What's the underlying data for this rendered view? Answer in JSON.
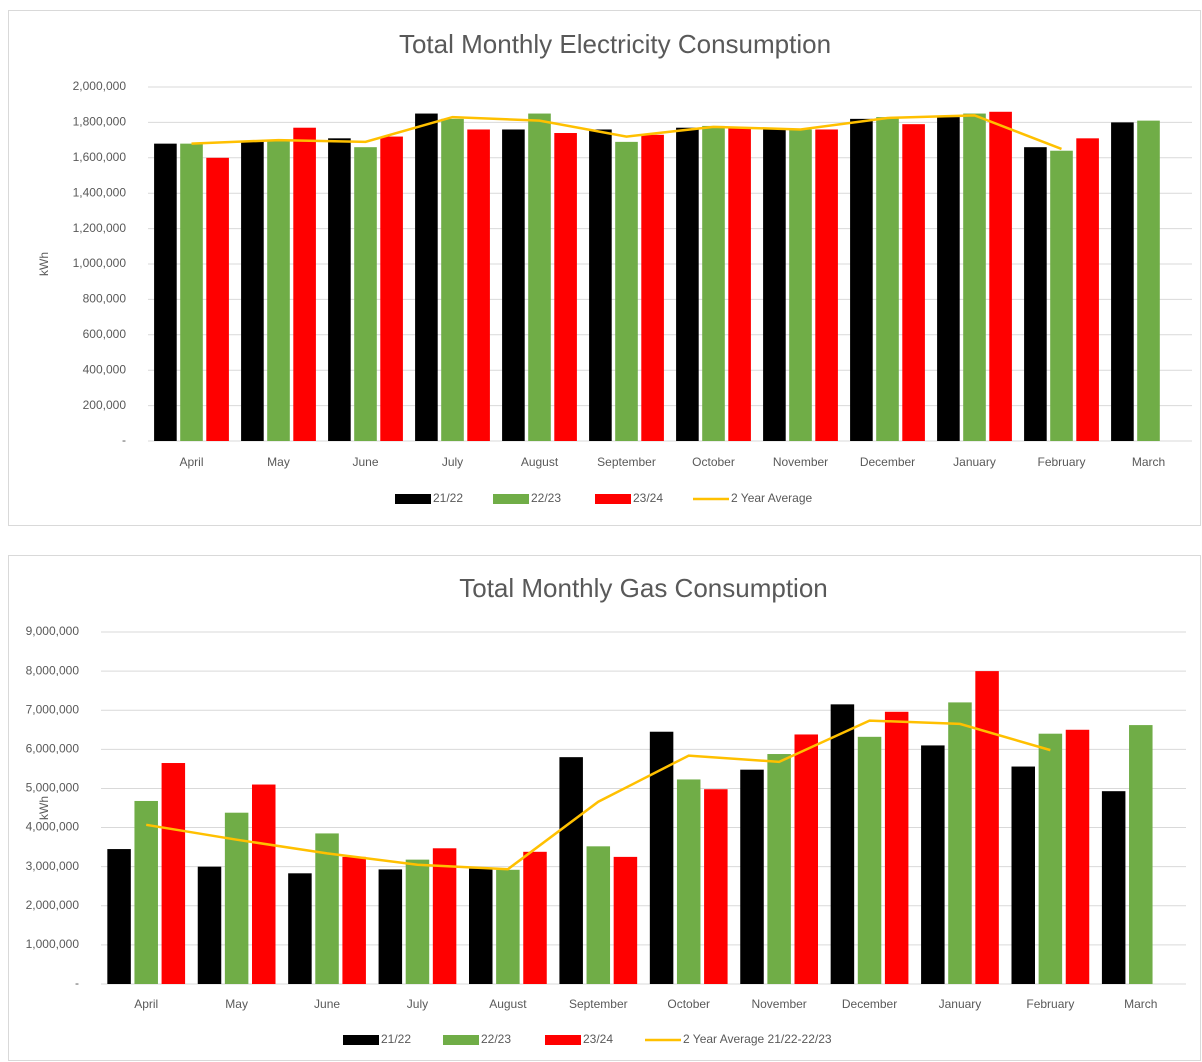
{
  "chart_data": [
    {
      "type": "bar",
      "title": "Total Monthly Electricity Consumption",
      "y_label": "kWh",
      "categories": [
        "April",
        "May",
        "June",
        "July",
        "August",
        "September",
        "October",
        "November",
        "December",
        "January",
        "February",
        "March"
      ],
      "series": [
        {
          "name": "21/22",
          "color": "#000000",
          "values": [
            1680000,
            1690000,
            1710000,
            1850000,
            1760000,
            1760000,
            1770000,
            1760000,
            1820000,
            1830000,
            1660000,
            1800000
          ]
        },
        {
          "name": "22/23",
          "color": "#70ad47",
          "values": [
            1680000,
            1700000,
            1660000,
            1820000,
            1850000,
            1690000,
            1780000,
            1760000,
            1830000,
            1850000,
            1640000,
            1810000
          ]
        },
        {
          "name": "23/24",
          "color": "#ff0000",
          "values": [
            1600000,
            1770000,
            1720000,
            1760000,
            1740000,
            1730000,
            1770000,
            1760000,
            1790000,
            1860000,
            1710000,
            null
          ]
        },
        {
          "name": "2 Year Average",
          "color": "#ffc000",
          "type": "line",
          "values": [
            1680000,
            1700000,
            1690000,
            1830000,
            1810000,
            1720000,
            1775000,
            1760000,
            1825000,
            1840000,
            1650000,
            null
          ]
        }
      ],
      "ylim": [
        0,
        2000000
      ],
      "yticks": [
        {
          "value": 0,
          "label": "-"
        },
        {
          "value": 200000,
          "label": "200,000"
        },
        {
          "value": 400000,
          "label": "400,000"
        },
        {
          "value": 600000,
          "label": "600,000"
        },
        {
          "value": 800000,
          "label": "800,000"
        },
        {
          "value": 1000000,
          "label": "1,000,000"
        },
        {
          "value": 1200000,
          "label": "1,200,000"
        },
        {
          "value": 1400000,
          "label": "1,400,000"
        },
        {
          "value": 1600000,
          "label": "1,600,000"
        },
        {
          "value": 1800000,
          "label": "1,800,000"
        },
        {
          "value": 2000000,
          "label": "2,000,000"
        }
      ],
      "grid": true,
      "legend": "bottom"
    },
    {
      "type": "bar",
      "title": "Total Monthly Gas Consumption",
      "y_label": "kWh",
      "categories": [
        "April",
        "May",
        "June",
        "July",
        "August",
        "September",
        "October",
        "November",
        "December",
        "January",
        "February",
        "March"
      ],
      "series": [
        {
          "name": "21/22",
          "color": "#000000",
          "values": [
            3450000,
            3000000,
            2830000,
            2930000,
            2950000,
            5800000,
            6450000,
            5480000,
            7150000,
            6100000,
            5560000,
            4930000
          ]
        },
        {
          "name": "22/23",
          "color": "#70ad47",
          "values": [
            4680000,
            4380000,
            3850000,
            3180000,
            2920000,
            3520000,
            5230000,
            5880000,
            6320000,
            7200000,
            6400000,
            6620000
          ]
        },
        {
          "name": "23/24",
          "color": "#ff0000",
          "values": [
            5650000,
            5100000,
            3250000,
            3470000,
            3380000,
            3250000,
            4980000,
            6380000,
            6960000,
            8000000,
            6500000,
            null
          ]
        },
        {
          "name": "2 Year Average 21/22-22/23",
          "color": "#ffc000",
          "type": "line",
          "values": [
            4070000,
            3690000,
            3340000,
            3050000,
            2935000,
            4660000,
            5840000,
            5680000,
            6735000,
            6650000,
            5980000,
            null
          ]
        }
      ],
      "ylim": [
        0,
        9000000
      ],
      "yticks": [
        {
          "value": 0,
          "label": "-"
        },
        {
          "value": 1000000,
          "label": "1,000,000"
        },
        {
          "value": 2000000,
          "label": "2,000,000"
        },
        {
          "value": 3000000,
          "label": "3,000,000"
        },
        {
          "value": 4000000,
          "label": "4,000,000"
        },
        {
          "value": 5000000,
          "label": "5,000,000"
        },
        {
          "value": 6000000,
          "label": "6,000,000"
        },
        {
          "value": 7000000,
          "label": "7,000,000"
        },
        {
          "value": 8000000,
          "label": "8,000,000"
        },
        {
          "value": 9000000,
          "label": "9,000,000"
        }
      ],
      "grid": true,
      "legend": "bottom"
    }
  ]
}
